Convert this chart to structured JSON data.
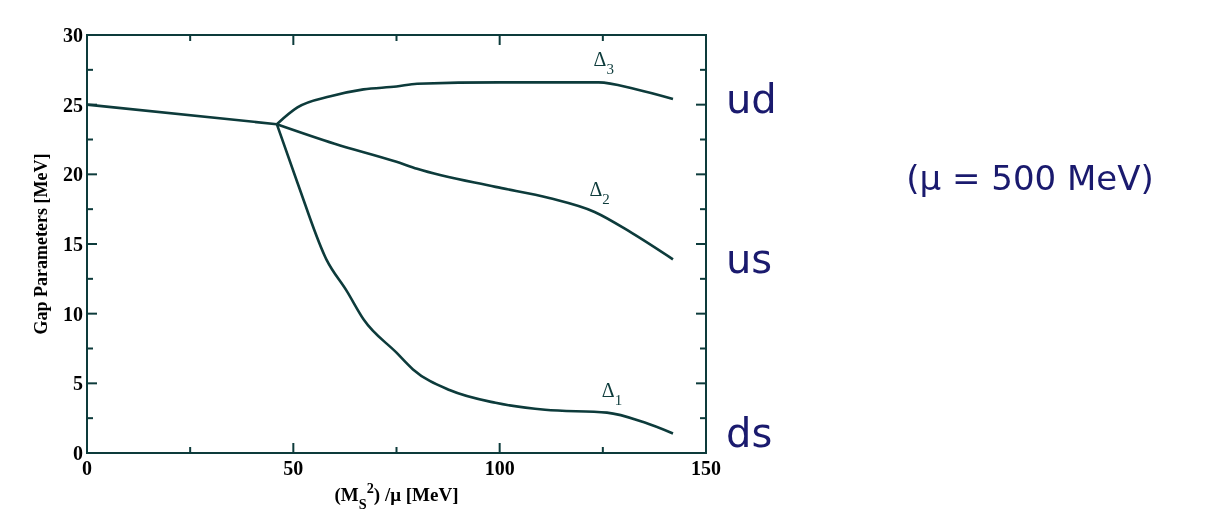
{
  "chart_data": {
    "type": "line",
    "xlabel": "(M$_{S}$$^{2}$) /μ [MeV]",
    "ylabel": "Gap Parameters [MeV]",
    "xlim": [
      0,
      150
    ],
    "ylim": [
      0,
      30
    ],
    "xticks": [
      0,
      {
        "value": 25,
        "label": null
      },
      50,
      {
        "value": 75,
        "label": null
      },
      100,
      {
        "value": 125,
        "label": null
      },
      150
    ],
    "yticks": [
      0,
      {
        "value": 2.5,
        "label": null
      },
      5,
      {
        "value": 7.5,
        "label": null
      },
      10,
      {
        "value": 12.5,
        "label": null
      },
      15,
      {
        "value": 17.5,
        "label": null
      },
      20,
      {
        "value": 22.5,
        "label": null
      },
      25,
      {
        "value": 27.5,
        "label": null
      },
      30
    ],
    "grid": false,
    "marker": "none",
    "line_style": "solid",
    "series": [
      {
        "color": "#0d3b3b",
        "x": [
          0,
          46
        ],
        "values": [
          25,
          23.6
        ]
      },
      {
        "name": "Δ$_{3}$",
        "color": "#0d3b3b",
        "x": [
          46,
          51,
          59,
          67,
          75,
          80,
          100,
          124,
          133,
          142
        ],
        "values": [
          23.6,
          24.8,
          25.6,
          26.1,
          26.3,
          26.5,
          26.6,
          26.6,
          26.1,
          25.4
        ]
      },
      {
        "name": "Δ$_{2}$",
        "color": "#0d3b3b",
        "x": [
          46,
          60,
          75,
          80,
          99,
          112,
          123,
          132,
          142
        ],
        "values": [
          23.6,
          22.2,
          20.9,
          20.4,
          19.1,
          18.3,
          17.3,
          15.8,
          13.9
        ]
      },
      {
        "name": "Δ$_{1}$",
        "color": "#0d3b3b",
        "x": [
          46,
          51,
          58,
          63,
          67,
          75,
          79,
          88,
          99,
          111,
          126,
          135,
          142
        ],
        "values": [
          23.6,
          19.4,
          13.9,
          11.6,
          9.6,
          7.2,
          6.0,
          4.5,
          3.6,
          3.1,
          2.9,
          2.2,
          1.4
        ]
      }
    ],
    "annotations": [
      "ud",
      "us",
      "ds",
      "(μ = 500 MeV)"
    ]
  }
}
